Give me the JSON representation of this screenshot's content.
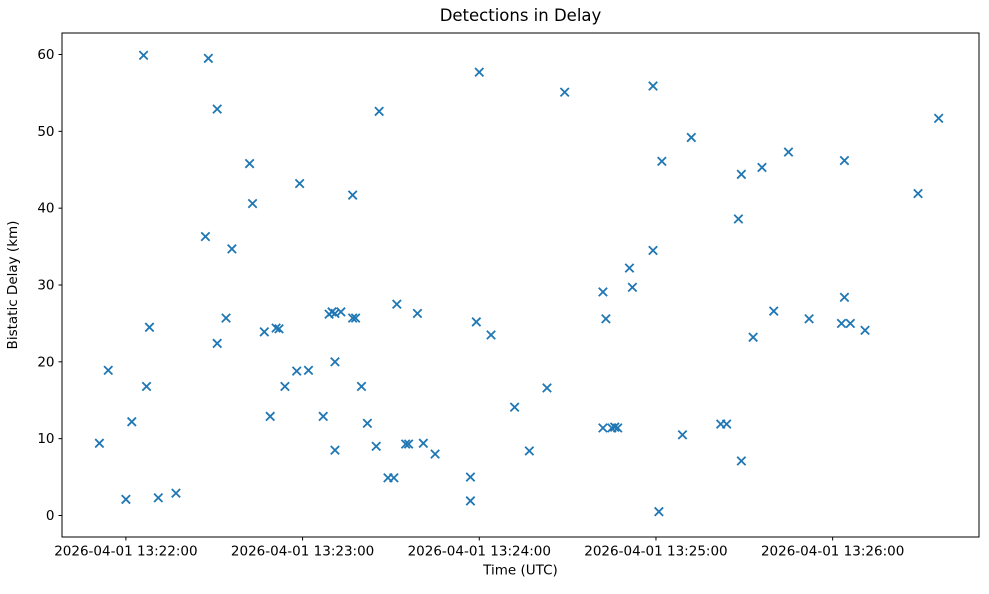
{
  "figure": {
    "background": "#ffffff"
  },
  "chart_data": {
    "type": "scatter",
    "title": "Detections in Delay",
    "xlabel": "Time (UTC)",
    "ylabel": "Bistatic Delay (km)",
    "date": "2026-04-01",
    "marker": "x",
    "marker_color": "#1f77b4",
    "grid": false,
    "legend": null,
    "x_ticks": [
      {
        "time": "13:22:00",
        "label": "2026-04-01 13:22:00"
      },
      {
        "time": "13:23:00",
        "label": "2026-04-01 13:23:00"
      },
      {
        "time": "13:24:00",
        "label": "2026-04-01 13:24:00"
      },
      {
        "time": "13:25:00",
        "label": "2026-04-01 13:25:00"
      },
      {
        "time": "13:26:00",
        "label": "2026-04-01 13:26:00"
      }
    ],
    "y_ticks": [
      0,
      10,
      20,
      30,
      40,
      50,
      60
    ],
    "xlim_seconds_from_13_22_00": [
      -21.7,
      289.7
    ],
    "ylim": [
      -2.8,
      62.8
    ],
    "points": [
      [
        "13:21:51",
        9.4
      ],
      [
        "13:21:54",
        18.9
      ],
      [
        "13:22:00",
        2.1
      ],
      [
        "13:22:02",
        12.2
      ],
      [
        "13:22:06",
        59.9
      ],
      [
        "13:22:07",
        16.8
      ],
      [
        "13:22:08",
        24.5
      ],
      [
        "13:22:11",
        2.3
      ],
      [
        "13:22:17",
        2.9
      ],
      [
        "13:22:27",
        36.3
      ],
      [
        "13:22:28",
        59.5
      ],
      [
        "13:22:31",
        52.9
      ],
      [
        "13:22:31",
        22.4
      ],
      [
        "13:22:34",
        25.7
      ],
      [
        "13:22:36",
        34.7
      ],
      [
        "13:22:42",
        45.8
      ],
      [
        "13:22:43",
        40.6
      ],
      [
        "13:22:47",
        23.9
      ],
      [
        "13:22:49",
        12.9
      ],
      [
        "13:22:51",
        24.4
      ],
      [
        "13:22:52",
        24.3
      ],
      [
        "13:22:54",
        16.8
      ],
      [
        "13:22:58",
        18.8
      ],
      [
        "13:22:59",
        43.2
      ],
      [
        "13:23:02",
        18.9
      ],
      [
        "13:23:07",
        12.9
      ],
      [
        "13:23:09",
        26.2
      ],
      [
        "13:23:10",
        26.5
      ],
      [
        "13:23:11",
        26.3
      ],
      [
        "13:23:11",
        20.0
      ],
      [
        "13:23:11",
        8.5
      ],
      [
        "13:23:13",
        26.5
      ],
      [
        "13:23:17",
        41.7
      ],
      [
        "13:23:17",
        25.7
      ],
      [
        "13:23:18",
        25.7
      ],
      [
        "13:23:20",
        16.8
      ],
      [
        "13:23:22",
        12.0
      ],
      [
        "13:23:25",
        9.0
      ],
      [
        "13:23:26",
        52.6
      ],
      [
        "13:23:29",
        4.9
      ],
      [
        "13:23:31",
        4.9
      ],
      [
        "13:23:32",
        27.5
      ],
      [
        "13:23:35",
        9.3
      ],
      [
        "13:23:36",
        9.3
      ],
      [
        "13:23:39",
        26.3
      ],
      [
        "13:23:41",
        9.4
      ],
      [
        "13:23:45",
        8.0
      ],
      [
        "13:23:57",
        5.0
      ],
      [
        "13:23:57",
        1.9
      ],
      [
        "13:23:59",
        25.2
      ],
      [
        "13:24:00",
        57.7
      ],
      [
        "13:24:04",
        23.5
      ],
      [
        "13:24:12",
        14.1
      ],
      [
        "13:24:17",
        8.4
      ],
      [
        "13:24:23",
        16.6
      ],
      [
        "13:24:29",
        55.1
      ],
      [
        "13:24:42",
        29.1
      ],
      [
        "13:24:42",
        11.4
      ],
      [
        "13:24:43",
        25.6
      ],
      [
        "13:24:45",
        11.4
      ],
      [
        "13:24:46",
        11.5
      ],
      [
        "13:24:47",
        11.4
      ],
      [
        "13:24:51",
        32.2
      ],
      [
        "13:24:52",
        29.7
      ],
      [
        "13:24:59",
        55.9
      ],
      [
        "13:24:59",
        34.5
      ],
      [
        "13:25:01",
        0.5
      ],
      [
        "13:25:02",
        46.1
      ],
      [
        "13:25:09",
        10.5
      ],
      [
        "13:25:12",
        49.2
      ],
      [
        "13:25:22",
        11.9
      ],
      [
        "13:25:24",
        11.9
      ],
      [
        "13:25:28",
        38.6
      ],
      [
        "13:25:29",
        44.4
      ],
      [
        "13:25:29",
        7.1
      ],
      [
        "13:25:33",
        23.2
      ],
      [
        "13:25:36",
        45.3
      ],
      [
        "13:25:40",
        26.6
      ],
      [
        "13:25:45",
        47.3
      ],
      [
        "13:25:52",
        25.6
      ],
      [
        "13:26:03",
        25.0
      ],
      [
        "13:26:04",
        46.2
      ],
      [
        "13:26:04",
        28.4
      ],
      [
        "13:26:06",
        25.0
      ],
      [
        "13:26:11",
        24.1
      ],
      [
        "13:26:29",
        41.9
      ],
      [
        "13:26:36",
        51.7
      ]
    ]
  }
}
